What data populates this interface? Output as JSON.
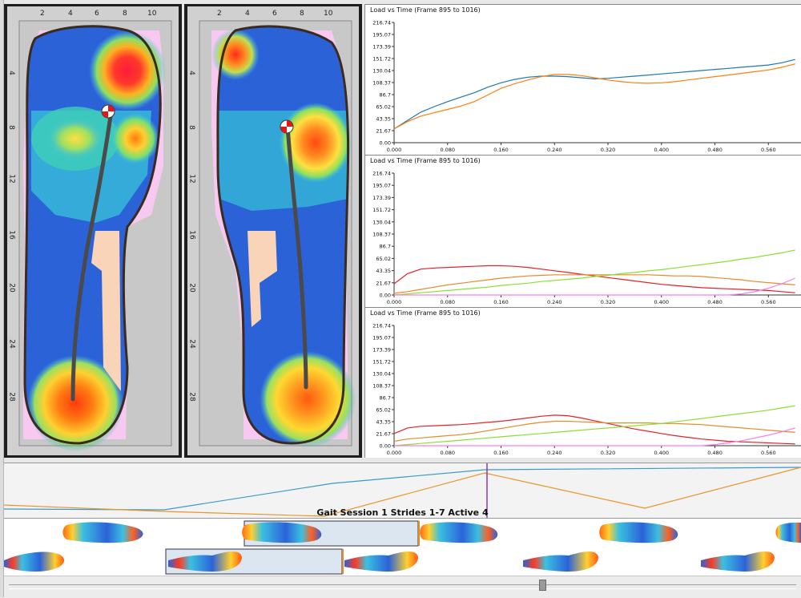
{
  "foot_left": {
    "x_ticks": [
      "2",
      "4",
      "6",
      "8",
      "10"
    ],
    "y_ticks": [
      "4",
      "8",
      "12",
      "16",
      "20",
      "24",
      "28"
    ]
  },
  "foot_right": {
    "x_ticks": [
      "2",
      "4",
      "6",
      "8",
      "10"
    ],
    "y_ticks": [
      "4",
      "8",
      "12",
      "16",
      "20",
      "24",
      "28"
    ]
  },
  "session": {
    "label": "Gait Session 1  Strides 1-7  Active 4"
  },
  "colors": {
    "series_blue": "#1f77b4",
    "series_orange": "#ff7f0e",
    "series_red": "#e8202a",
    "series_green": "#88e030",
    "series_pink": "#ff7ae8",
    "series_dark_orange": "#e88a2a"
  },
  "chart_data": [
    {
      "type": "line",
      "title": "Load vs Time (Frame 895 to 1016)",
      "xlabel": "",
      "ylabel": "",
      "xlim": [
        0,
        0.61
      ],
      "ylim": [
        0,
        216.74
      ],
      "x_ticks": [
        "0.000",
        "0.080",
        "0.160",
        "0.240",
        "0.320",
        "0.400",
        "0.480",
        "0.560"
      ],
      "y_ticks": [
        "0.00",
        "21.67",
        "43.35",
        "65.02",
        "86.7",
        "108.37",
        "130.04",
        "151.72",
        "173.39",
        "195.07",
        "216.74"
      ],
      "x": [
        0,
        0.02,
        0.04,
        0.06,
        0.08,
        0.1,
        0.12,
        0.14,
        0.16,
        0.18,
        0.2,
        0.22,
        0.24,
        0.26,
        0.28,
        0.3,
        0.32,
        0.34,
        0.36,
        0.38,
        0.4,
        0.42,
        0.44,
        0.46,
        0.48,
        0.5,
        0.52,
        0.54,
        0.56,
        0.58,
        0.6
      ],
      "series": [
        {
          "color": "series_blue",
          "values": [
            25,
            40,
            55,
            65,
            74,
            82,
            90,
            100,
            108,
            114,
            118,
            120,
            120,
            119,
            117,
            115,
            116,
            118,
            120,
            122,
            124,
            126,
            128,
            130,
            132,
            134,
            136,
            138,
            140,
            144,
            150
          ]
        },
        {
          "color": "series_orange",
          "values": [
            25,
            38,
            48,
            54,
            60,
            66,
            74,
            86,
            98,
            106,
            113,
            119,
            123,
            123,
            121,
            117,
            113,
            110,
            108,
            107,
            108,
            110,
            113,
            116,
            119,
            122,
            125,
            128,
            131,
            136,
            142
          ]
        }
      ]
    },
    {
      "type": "line",
      "title": "Load vs Time (Frame 895 to 1016)",
      "xlabel": "",
      "ylabel": "",
      "xlim": [
        0,
        0.61
      ],
      "ylim": [
        0,
        216.74
      ],
      "x_ticks": [
        "0.000",
        "0.080",
        "0.160",
        "0.240",
        "0.320",
        "0.400",
        "0.480",
        "0.560"
      ],
      "y_ticks": [
        "0.00",
        "21.67",
        "43.35",
        "65.02",
        "86.7",
        "108.37",
        "130.04",
        "151.72",
        "173.39",
        "195.07",
        "216.74"
      ],
      "x": [
        0,
        0.02,
        0.04,
        0.06,
        0.08,
        0.1,
        0.12,
        0.14,
        0.16,
        0.18,
        0.2,
        0.22,
        0.24,
        0.26,
        0.28,
        0.3,
        0.32,
        0.34,
        0.36,
        0.38,
        0.4,
        0.42,
        0.44,
        0.46,
        0.48,
        0.5,
        0.52,
        0.54,
        0.56,
        0.58,
        0.6
      ],
      "series": [
        {
          "color": "series_red",
          "values": [
            20,
            38,
            46,
            48,
            49,
            50,
            51,
            52,
            52,
            51,
            49,
            46,
            43,
            40,
            37,
            34,
            31,
            28,
            25,
            22,
            19,
            17,
            15,
            13,
            12,
            11,
            10,
            9,
            8,
            6,
            4
          ]
        },
        {
          "color": "series_dark_orange",
          "values": [
            3,
            6,
            10,
            14,
            18,
            21,
            24,
            27,
            30,
            32,
            34,
            35,
            36,
            36,
            36,
            36,
            36,
            36,
            36,
            36,
            35,
            34,
            34,
            33,
            31,
            29,
            27,
            24,
            22,
            20,
            18
          ]
        },
        {
          "color": "series_green",
          "values": [
            0,
            2,
            4,
            6,
            8,
            10,
            12,
            14,
            17,
            19,
            21,
            24,
            26,
            28,
            30,
            33,
            35,
            38,
            40,
            43,
            45,
            48,
            51,
            54,
            57,
            60,
            64,
            67,
            71,
            75,
            80
          ]
        },
        {
          "color": "series_pink",
          "values": [
            0,
            0,
            0,
            0,
            0,
            0,
            0,
            0,
            0,
            0,
            0,
            0,
            0,
            0,
            0,
            0,
            0,
            0,
            0,
            0,
            0,
            0,
            0,
            0,
            0,
            0,
            2,
            6,
            12,
            20,
            30
          ]
        }
      ]
    },
    {
      "type": "line",
      "title": "Load vs Time (Frame 895 to 1016)",
      "xlabel": "",
      "ylabel": "",
      "xlim": [
        0,
        0.61
      ],
      "ylim": [
        0,
        216.74
      ],
      "x_ticks": [
        "0.000",
        "0.080",
        "0.160",
        "0.240",
        "0.320",
        "0.400",
        "0.480",
        "0.560"
      ],
      "y_ticks": [
        "0.00",
        "21.67",
        "43.35",
        "65.02",
        "86.7",
        "108.37",
        "130.04",
        "151.72",
        "173.39",
        "195.07",
        "216.74"
      ],
      "x": [
        0,
        0.02,
        0.04,
        0.06,
        0.08,
        0.1,
        0.12,
        0.14,
        0.16,
        0.18,
        0.2,
        0.22,
        0.24,
        0.26,
        0.28,
        0.3,
        0.32,
        0.34,
        0.36,
        0.38,
        0.4,
        0.42,
        0.44,
        0.46,
        0.48,
        0.5,
        0.52,
        0.54,
        0.56,
        0.58,
        0.6
      ],
      "series": [
        {
          "color": "series_red",
          "values": [
            22,
            32,
            35,
            36,
            37,
            38,
            40,
            42,
            44,
            47,
            50,
            53,
            55,
            54,
            50,
            45,
            40,
            35,
            30,
            26,
            22,
            18,
            15,
            12,
            10,
            8,
            7,
            6,
            5,
            4,
            3
          ]
        },
        {
          "color": "series_dark_orange",
          "values": [
            8,
            12,
            14,
            16,
            18,
            20,
            23,
            27,
            31,
            35,
            39,
            42,
            44,
            44,
            43,
            42,
            41,
            41,
            41,
            41,
            40,
            40,
            39,
            38,
            36,
            34,
            32,
            30,
            28,
            26,
            24
          ]
        },
        {
          "color": "series_green",
          "values": [
            0,
            2,
            4,
            6,
            8,
            10,
            12,
            14,
            16,
            18,
            20,
            22,
            24,
            26,
            28,
            30,
            32,
            34,
            36,
            38,
            40,
            43,
            46,
            49,
            52,
            55,
            58,
            61,
            64,
            68,
            72
          ]
        },
        {
          "color": "series_pink",
          "values": [
            0,
            0,
            0,
            0,
            0,
            0,
            0,
            0,
            0,
            0,
            0,
            0,
            0,
            0,
            0,
            0,
            0,
            0,
            0,
            0,
            0,
            0,
            0,
            0,
            2,
            5,
            9,
            14,
            19,
            25,
            32
          ]
        }
      ]
    }
  ]
}
